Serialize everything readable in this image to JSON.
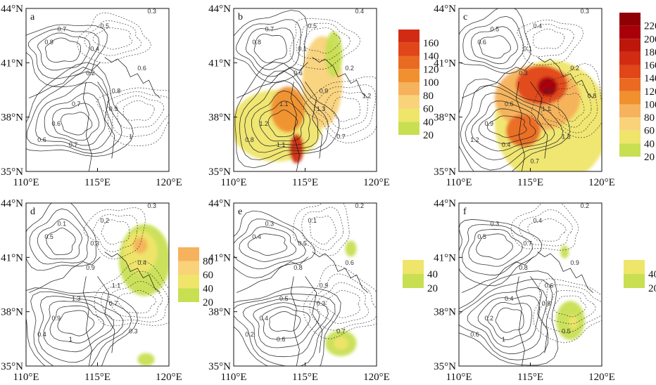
{
  "figure": {
    "x_ticks": [
      "110°E",
      "115°E",
      "120°E"
    ],
    "y_ticks": [
      "35°N",
      "38°N",
      "41°N",
      "44°N"
    ]
  },
  "panels": [
    {
      "id": "a",
      "label": "a",
      "colorbar": [],
      "contour_labels": [
        "0.3",
        "0.5",
        "0.7",
        "0.9",
        "0.4",
        "0.6",
        "0.2",
        "0.8",
        "0.7",
        "0.6",
        "0.9",
        "1",
        "0.6",
        "0.7"
      ],
      "blobs": []
    },
    {
      "id": "b",
      "label": "b",
      "colorbar": [
        "20",
        "40",
        "60",
        "80",
        "100",
        "120",
        "140",
        "160"
      ],
      "contour_labels": [
        "0.4",
        "0.5",
        "0.7",
        "0.8",
        "0.1",
        "0.2",
        "0.6",
        "0.9",
        "1.1",
        "1.2",
        "1.3",
        "0.7",
        "0.8",
        "1.1",
        "1.2"
      ],
      "blobs": [
        {
          "value": 40
        },
        {
          "value": 60
        },
        {
          "value": 100
        },
        {
          "value": 160
        },
        {
          "value": 30
        }
      ]
    },
    {
      "id": "c",
      "label": "c",
      "colorbar": [
        "20",
        "40",
        "60",
        "80",
        "100",
        "120",
        "140",
        "160",
        "180",
        "200",
        "220"
      ],
      "contour_labels": [
        "0.3",
        "0.4",
        "0.5",
        "0.6",
        "0.1",
        "0.2",
        "0.3",
        "0.5",
        "0.6",
        "0.9",
        "1.1",
        "1.3",
        "1.2",
        "0.4",
        "0.8",
        "0.7"
      ],
      "blobs": [
        {
          "value": 40
        },
        {
          "value": 80
        },
        {
          "value": 140
        },
        {
          "value": 200
        },
        {
          "value": 120
        }
      ]
    },
    {
      "id": "d",
      "label": "d",
      "colorbar": [
        "20",
        "40",
        "60",
        "80"
      ],
      "contour_labels": [
        "0.3",
        "0.2",
        "0.1",
        "0.5",
        "0.3",
        "0.4",
        "0.9",
        "1.1",
        "1.3",
        "0.9",
        "0.7",
        "0.3",
        "0.4",
        "1"
      ],
      "blobs": [
        {
          "value": 30
        },
        {
          "value": 55
        },
        {
          "value": 85
        },
        {
          "value": 20
        }
      ]
    },
    {
      "id": "e",
      "label": "e",
      "colorbar": [
        "20",
        "40"
      ],
      "contour_labels": [
        "0.2",
        "0.1",
        "0.3",
        "0.4",
        "0.5",
        "0.6",
        "0.8",
        "0.9",
        "0.5",
        "0.4",
        "0.3",
        "0.7",
        "0.2",
        "0.6"
      ],
      "blobs": [
        {
          "value": 25
        },
        {
          "value": 45
        },
        {
          "value": 25
        }
      ]
    },
    {
      "id": "f",
      "label": "f",
      "colorbar": [
        "20",
        "40"
      ],
      "contour_labels": [
        "0.2",
        "0.4",
        "0.3",
        "0.5",
        "0.7",
        "0.9",
        "0.8",
        "0.6",
        "0.4",
        "0.2",
        "0.8",
        "0.5",
        "0.6",
        "1"
      ],
      "blobs": [
        {
          "value": 25
        },
        {
          "value": 45
        },
        {
          "value": 25
        }
      ]
    }
  ]
}
